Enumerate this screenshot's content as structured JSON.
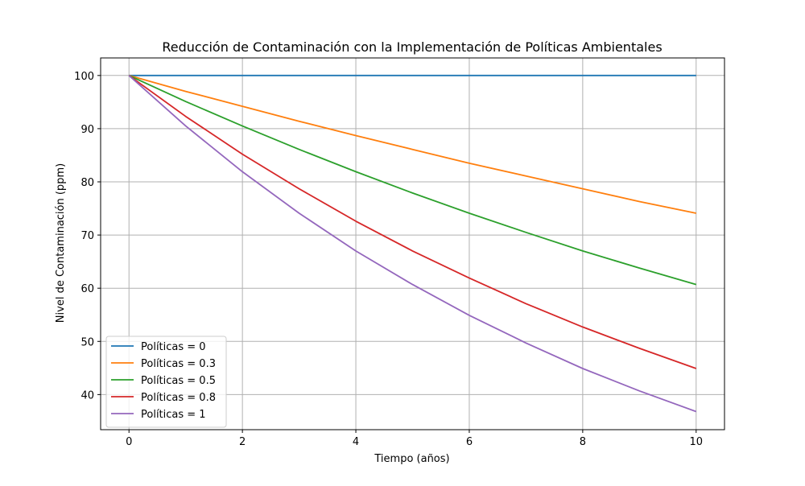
{
  "chart_data": {
    "type": "line",
    "title": "Reducción de Contaminación con la Implementación de Políticas Ambientales",
    "xlabel": "Tiempo (años)",
    "ylabel": "Nivel de Contaminación (ppm)",
    "xlim": [
      -0.5,
      10.5
    ],
    "ylim": [
      33.4,
      103.3
    ],
    "xticks": [
      0,
      2,
      4,
      6,
      8,
      10
    ],
    "yticks": [
      40,
      50,
      60,
      70,
      80,
      90,
      100
    ],
    "grid": true,
    "legend_position": "lower-left",
    "x": [
      0,
      1,
      2,
      3,
      4,
      5,
      6,
      7,
      8,
      9,
      10
    ],
    "series": [
      {
        "name": "Políticas = 0",
        "color": "#1f77b4",
        "values": [
          100,
          100,
          100,
          100,
          100,
          100,
          100,
          100,
          100,
          100,
          100
        ]
      },
      {
        "name": "Políticas = 0.3",
        "color": "#ff7f0e",
        "values": [
          100,
          97.0,
          94.2,
          91.4,
          88.7,
          86.1,
          83.5,
          81.1,
          78.7,
          76.3,
          74.1
        ]
      },
      {
        "name": "Políticas = 0.5",
        "color": "#2ca02c",
        "values": [
          100,
          95.1,
          90.5,
          86.1,
          81.9,
          77.9,
          74.1,
          70.5,
          67.0,
          63.8,
          60.7
        ]
      },
      {
        "name": "Políticas = 0.8",
        "color": "#d62728",
        "values": [
          100,
          92.3,
          85.2,
          78.7,
          72.6,
          67.0,
          61.9,
          57.1,
          52.7,
          48.7,
          44.9
        ]
      },
      {
        "name": "Políticas = 1",
        "color": "#9467bd",
        "values": [
          100,
          90.5,
          81.9,
          74.1,
          67.0,
          60.7,
          54.9,
          49.7,
          44.9,
          40.7,
          36.8
        ]
      }
    ]
  }
}
